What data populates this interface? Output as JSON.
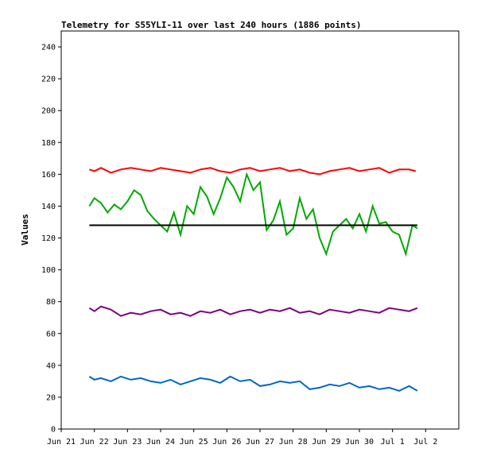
{
  "chart_data": {
    "type": "line",
    "title": "Telemetry for S55YLI-11 over last 240 hours (1886 points)",
    "xlabel": "",
    "ylabel": "Values",
    "ylim": [
      0,
      250
    ],
    "yticks": [
      0,
      20,
      40,
      60,
      80,
      100,
      120,
      140,
      160,
      180,
      200,
      220,
      240
    ],
    "x_axis_range_days": [
      0,
      12
    ],
    "xticks": [
      {
        "label": "Jun 21",
        "day": 0
      },
      {
        "label": "Jun 22",
        "day": 1
      },
      {
        "label": "Jun 23",
        "day": 2
      },
      {
        "label": "Jun 24",
        "day": 3
      },
      {
        "label": "Jun 25",
        "day": 4
      },
      {
        "label": "Jun 26",
        "day": 5
      },
      {
        "label": "Jun 27",
        "day": 6
      },
      {
        "label": "Jun 28",
        "day": 7
      },
      {
        "label": "Jun 29",
        "day": 8
      },
      {
        "label": "Jun 30",
        "day": 9
      },
      {
        "label": "Jul 1",
        "day": 10
      },
      {
        "label": "Jul 2",
        "day": 11
      }
    ],
    "grid": false,
    "legend": "none",
    "series": [
      {
        "color": "#ff0000",
        "x": [
          0.85,
          1.0,
          1.2,
          1.5,
          1.8,
          2.1,
          2.4,
          2.7,
          3.0,
          3.3,
          3.6,
          3.9,
          4.2,
          4.5,
          4.8,
          5.1,
          5.4,
          5.7,
          6.0,
          6.3,
          6.6,
          6.9,
          7.2,
          7.5,
          7.8,
          8.1,
          8.4,
          8.7,
          9.0,
          9.3,
          9.6,
          9.9,
          10.2,
          10.5,
          10.7
        ],
        "y": [
          163,
          162,
          164,
          161,
          163,
          164,
          163,
          162,
          164,
          163,
          162,
          161,
          163,
          164,
          162,
          161,
          163,
          164,
          162,
          163,
          164,
          162,
          163,
          161,
          160,
          162,
          163,
          164,
          162,
          163,
          164,
          161,
          163,
          163,
          162
        ]
      },
      {
        "color": "#00aa00",
        "x": [
          0.85,
          1.0,
          1.2,
          1.4,
          1.6,
          1.8,
          2.0,
          2.2,
          2.4,
          2.6,
          2.8,
          3.0,
          3.2,
          3.4,
          3.6,
          3.8,
          4.0,
          4.2,
          4.4,
          4.6,
          4.8,
          5.0,
          5.2,
          5.4,
          5.6,
          5.8,
          6.0,
          6.2,
          6.4,
          6.6,
          6.8,
          7.0,
          7.2,
          7.4,
          7.6,
          7.8,
          8.0,
          8.2,
          8.4,
          8.6,
          8.8,
          9.0,
          9.2,
          9.4,
          9.6,
          9.8,
          10.0,
          10.2,
          10.4,
          10.6,
          10.75
        ],
        "y": [
          140,
          145,
          142,
          136,
          141,
          138,
          143,
          150,
          147,
          137,
          132,
          128,
          124,
          136,
          122,
          140,
          135,
          152,
          146,
          135,
          145,
          158,
          152,
          143,
          160,
          150,
          155,
          125,
          131,
          143,
          122,
          126,
          145,
          132,
          138,
          120,
          110,
          124,
          128,
          132,
          126,
          135,
          124,
          140,
          129,
          130,
          124,
          122,
          110,
          128,
          126
        ]
      },
      {
        "color": "#000000",
        "x": [
          0.85,
          10.75
        ],
        "y": [
          128,
          128
        ]
      },
      {
        "color": "#800080",
        "x": [
          0.85,
          1.0,
          1.2,
          1.5,
          1.8,
          2.1,
          2.4,
          2.7,
          3.0,
          3.3,
          3.6,
          3.9,
          4.2,
          4.5,
          4.8,
          5.1,
          5.4,
          5.7,
          6.0,
          6.3,
          6.6,
          6.9,
          7.2,
          7.5,
          7.8,
          8.1,
          8.4,
          8.7,
          9.0,
          9.3,
          9.6,
          9.9,
          10.2,
          10.5,
          10.75
        ],
        "y": [
          76,
          74,
          77,
          75,
          71,
          73,
          72,
          74,
          75,
          72,
          73,
          71,
          74,
          73,
          75,
          72,
          74,
          75,
          73,
          75,
          74,
          76,
          73,
          74,
          72,
          75,
          74,
          73,
          75,
          74,
          73,
          76,
          75,
          74,
          76
        ]
      },
      {
        "color": "#0066cc",
        "x": [
          0.85,
          1.0,
          1.2,
          1.5,
          1.8,
          2.1,
          2.4,
          2.7,
          3.0,
          3.3,
          3.6,
          3.9,
          4.2,
          4.5,
          4.8,
          5.1,
          5.4,
          5.7,
          6.0,
          6.3,
          6.6,
          6.9,
          7.2,
          7.5,
          7.8,
          8.1,
          8.4,
          8.7,
          9.0,
          9.3,
          9.6,
          9.9,
          10.2,
          10.5,
          10.75
        ],
        "y": [
          33,
          31,
          32,
          30,
          33,
          31,
          32,
          30,
          29,
          31,
          28,
          30,
          32,
          31,
          29,
          33,
          30,
          31,
          27,
          28,
          30,
          29,
          30,
          25,
          26,
          28,
          27,
          29,
          26,
          27,
          25,
          26,
          24,
          27,
          24
        ]
      }
    ]
  }
}
